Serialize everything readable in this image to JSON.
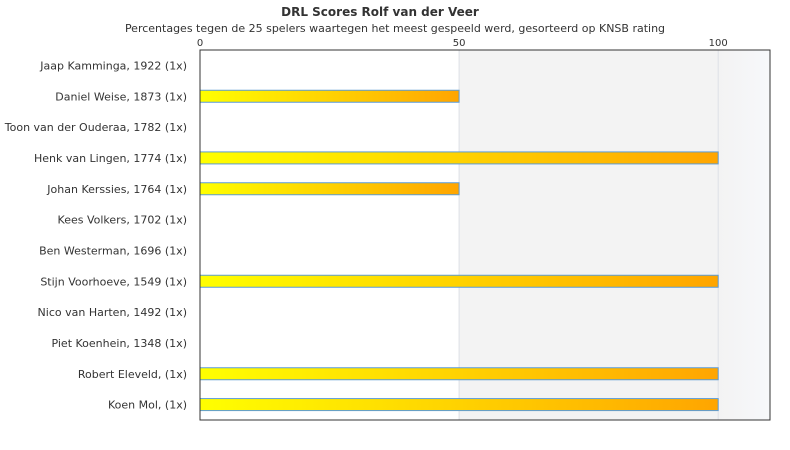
{
  "chart_data": {
    "type": "bar",
    "orientation": "horizontal",
    "title": "DRL Scores Rolf van der Veer",
    "subtitle": "Percentages tegen de 25 spelers waartegen het meest gespeeld werd, gesorteerd op KNSB rating",
    "categories": [
      "Jaap Kamminga, 1922 (1x)",
      "Daniel Weise, 1873 (1x)",
      "Toon van der Ouderaa, 1782 (1x)",
      "Henk van Lingen, 1774 (1x)",
      "Johan Kerssies, 1764 (1x)",
      "Kees Volkers, 1702 (1x)",
      "Ben Westerman, 1696 (1x)",
      "Stijn Voorhoeve, 1549 (1x)",
      "Nico van Harten, 1492 (1x)",
      "Piet Koenhein, 1348 (1x)",
      "Robert Eleveld,  (1x)",
      "Koen Mol,  (1x)"
    ],
    "values": [
      0,
      50,
      0,
      100,
      50,
      0,
      0,
      100,
      0,
      0,
      100,
      100
    ],
    "xlim": [
      0,
      110
    ],
    "ticks": [
      0,
      50,
      100
    ],
    "axis_position": "top",
    "bar_gradient": [
      "#ffff00",
      "#ffa500"
    ],
    "bar_border": "#5b9bd5"
  }
}
